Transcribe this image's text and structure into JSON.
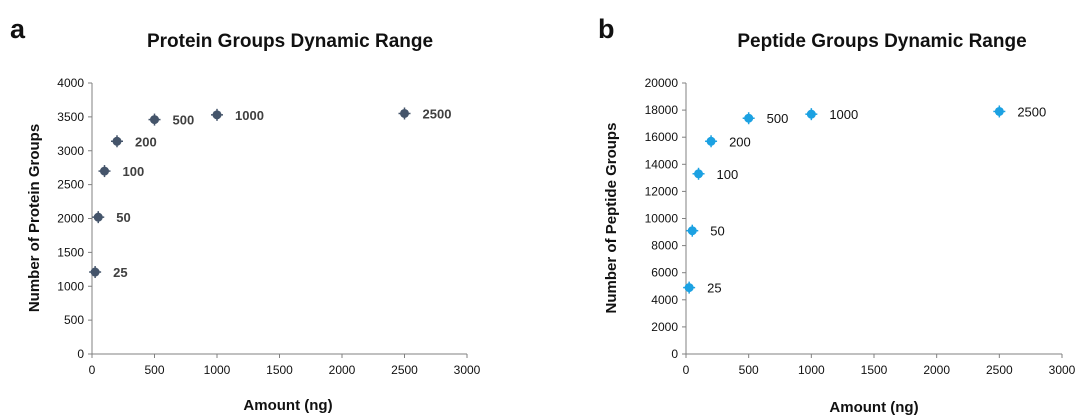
{
  "panels": [
    {
      "letter": "a"
    },
    {
      "letter": "b"
    }
  ],
  "chart_data": [
    {
      "type": "scatter",
      "title": "Protein Groups Dynamic Range",
      "xlabel": "Amount (ng)",
      "ylabel": "Number of Protein Groups",
      "xlim": [
        0,
        3000
      ],
      "ylim": [
        0,
        4000
      ],
      "x_ticks": [
        "0",
        "500",
        "1000",
        "1500",
        "2000",
        "2500",
        "3000"
      ],
      "y_ticks": [
        "0",
        "500",
        "1000",
        "1500",
        "2000",
        "2500",
        "3000",
        "3500",
        "4000"
      ],
      "grid": false,
      "marker_color": "#44546a",
      "label_color": "#404040",
      "label_bold": true,
      "points": [
        {
          "x": 25,
          "y": 1210,
          "label": "25"
        },
        {
          "x": 50,
          "y": 2020,
          "label": "50"
        },
        {
          "x": 100,
          "y": 2700,
          "label": "100"
        },
        {
          "x": 200,
          "y": 3140,
          "label": "200"
        },
        {
          "x": 500,
          "y": 3460,
          "label": "500"
        },
        {
          "x": 1000,
          "y": 3530,
          "label": "1000"
        },
        {
          "x": 2500,
          "y": 3550,
          "label": "2500"
        }
      ]
    },
    {
      "type": "scatter",
      "title": "Peptide Groups Dynamic Range",
      "xlabel": "Amount (ng)",
      "ylabel": "Number of Peptide Groups",
      "xlim": [
        0,
        3000
      ],
      "ylim": [
        0,
        20000
      ],
      "x_ticks": [
        "0",
        "500",
        "1000",
        "1500",
        "2000",
        "2500",
        "3000"
      ],
      "y_ticks": [
        "0",
        "2000",
        "4000",
        "6000",
        "8000",
        "10000",
        "12000",
        "14000",
        "16000",
        "18000",
        "20000"
      ],
      "grid": false,
      "marker_color": "#1ba1e2",
      "label_color": "#111111",
      "label_bold": false,
      "points": [
        {
          "x": 25,
          "y": 4900,
          "label": "25"
        },
        {
          "x": 50,
          "y": 9100,
          "label": "50"
        },
        {
          "x": 100,
          "y": 13300,
          "label": "100"
        },
        {
          "x": 200,
          "y": 15700,
          "label": "200"
        },
        {
          "x": 500,
          "y": 17400,
          "label": "500"
        },
        {
          "x": 1000,
          "y": 17700,
          "label": "1000"
        },
        {
          "x": 2500,
          "y": 17900,
          "label": "2500"
        }
      ]
    }
  ]
}
